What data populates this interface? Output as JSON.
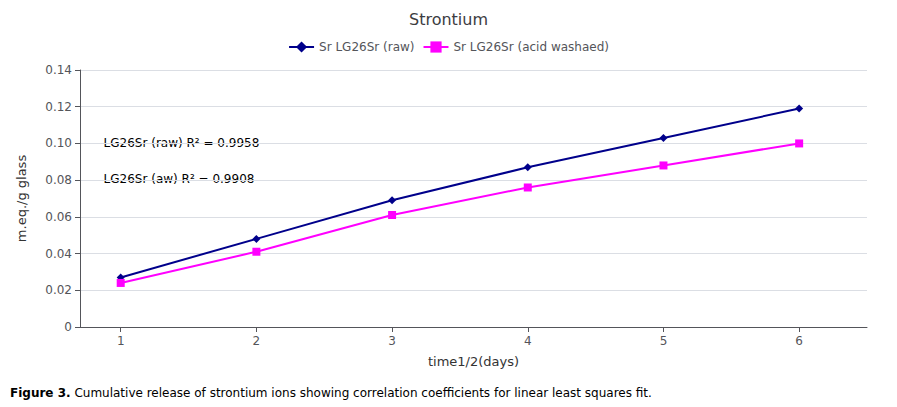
{
  "chart_data": {
    "type": "line",
    "title": "Strontium",
    "xlabel": "time1/2(days)",
    "ylabel": "m.eq./g glass",
    "x": [
      1,
      2,
      3,
      4,
      5,
      6
    ],
    "series": [
      {
        "name": "Sr LG26Sr (raw)",
        "color": "#00008B",
        "marker": "diamond",
        "values": [
          0.027,
          0.048,
          0.069,
          0.087,
          0.103,
          0.119
        ]
      },
      {
        "name": "Sr LG26Sr (acid washaed)",
        "color": "#FF00FF",
        "marker": "square",
        "values": [
          0.024,
          0.041,
          0.061,
          0.076,
          0.088,
          0.1
        ]
      }
    ],
    "xlim": [
      0.7,
      6.5
    ],
    "xticks": [
      1,
      2,
      3,
      4,
      5,
      6
    ],
    "ylim": [
      0,
      0.14
    ],
    "yticks": [
      0,
      0.02,
      0.04,
      0.06,
      0.08,
      {
        "value": 0.1,
        "label": "0.10"
      },
      0.12,
      0.14
    ],
    "grid": true,
    "legend": "top",
    "annotations": [
      "LG26Sr (raw) R² = 0.9958",
      "LG26Sr (aw) R² = 0.9908"
    ],
    "caption": [
      {
        "text": "Figure 3.",
        "bold": true
      },
      {
        "text": " Cumulative release of strontium ions showing correlation coefficients for linear least squares fit.",
        "color": "#0070C0"
      }
    ]
  }
}
